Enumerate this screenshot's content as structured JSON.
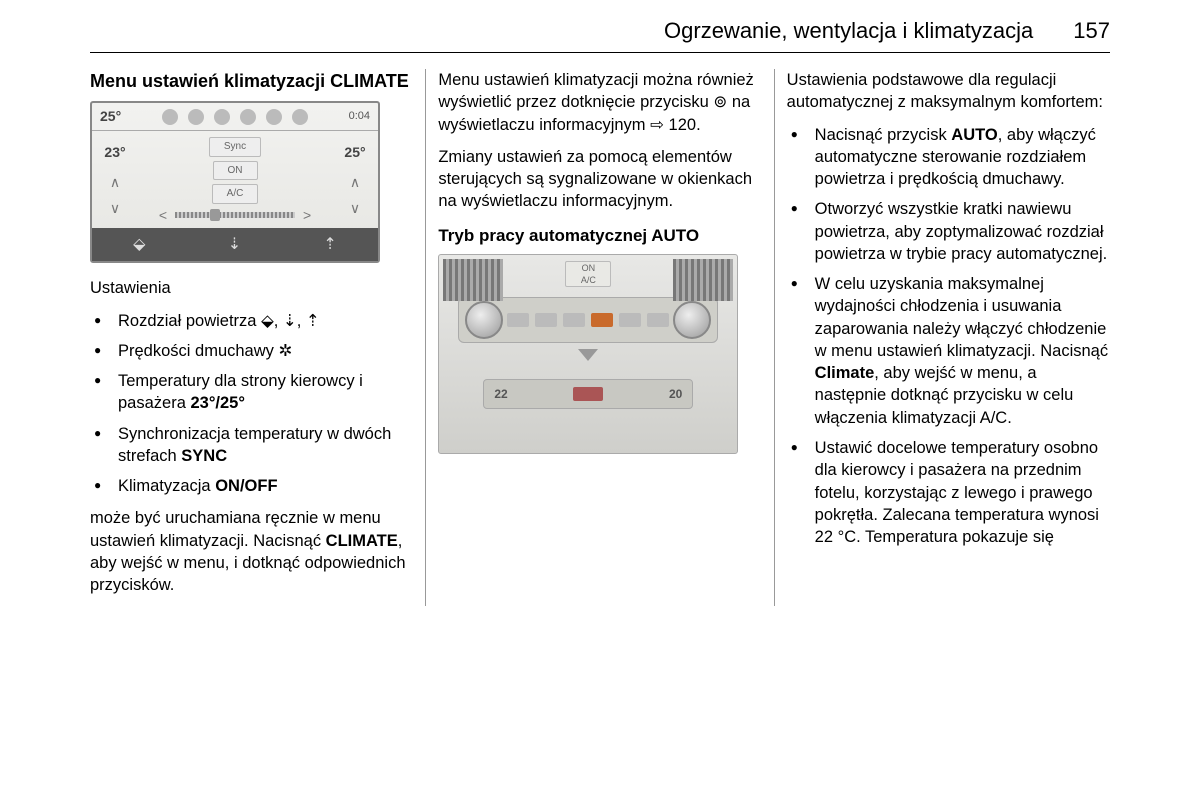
{
  "header": {
    "title": "Ogrzewanie, wentylacja i klimatyzacja",
    "page": "157"
  },
  "col1": {
    "heading": "Menu ustawień klimatyzacji CLIMATE",
    "settings_label": "Ustawienia",
    "bullet1_pre": "Rozdział powietrza ",
    "bullet1_icons": "⬙, ⇣, ⇡",
    "bullet2_pre": "Prędkości dmuchawy ",
    "bullet2_icon": "✲",
    "bullet3_pre": "Temperatury dla strony kierowcy i pasażera ",
    "bullet3_bold": "23°/25°",
    "bullet4_pre": "Synchronizacja temperatury w dwóch strefach ",
    "bullet4_bold": "SYNC",
    "bullet5_pre": "Klimatyzacja ",
    "bullet5_bold": "ON/OFF",
    "para_pre": "może być uruchamiana ręcznie w menu ustawień klimatyzacji. Nacisnąć ",
    "para_bold": "CLIMATE",
    "para_post": ", aby wejść w menu, i dotknąć odpowiednich przycisków."
  },
  "climate_screen": {
    "top_left_temp": "25°",
    "top_right_time": "0:04",
    "left_temp": "23°",
    "right_temp": "25°",
    "sync_label": "Sync",
    "on_label": "ON",
    "ac_label": "A/C"
  },
  "col2": {
    "p1_pre": "Menu ustawień klimatyzacji można również wyświetlić przez dotknięcie przycisku ",
    "p1_icon": "⊚",
    "p1_mid": " na wyświetlaczu informacyjnym ",
    "p1_arrow": "⇨",
    "p1_num": " 120.",
    "p2": "Zmiany ustawień za pomocą elementów sterujących są sygnalizowane w okienkach na wyświetlaczu informacyjnym.",
    "subheading": "Tryb pracy automatycznej AUTO"
  },
  "dashboard": {
    "on_label": "ON",
    "ac_label": "A/C",
    "left_temp": "22",
    "right_temp": "20"
  },
  "col3": {
    "intro": "Ustawienia podstawowe dla regulacji automatycznej z maksymalnym komfortem:",
    "b1_pre": "Nacisnąć przycisk ",
    "b1_bold": "AUTO",
    "b1_post": ", aby włączyć automatyczne sterowanie rozdziałem powietrza i prędkością dmuchawy.",
    "b2": "Otworzyć wszystkie kratki nawiewu powietrza, aby zoptymalizować rozdział powietrza w trybie pracy automatycznej.",
    "b3_pre": "W celu uzyskania maksymalnej wydajności chłodzenia i usuwania zaparowania należy włączyć chłodzenie w menu ustawień klimatyzacji. Nacisnąć ",
    "b3_bold": "Climate",
    "b3_post": ", aby wejść w menu, a następnie dotknąć przycisku w celu włączenia klimatyzacji A/C.",
    "b4": "Ustawić docelowe temperatury osobno dla kierowcy i pasażera na przednim fotelu, korzystając z lewego i prawego pokrętła. Zalecana temperatura wynosi 22 °C. Temperatura pokazuje się"
  }
}
